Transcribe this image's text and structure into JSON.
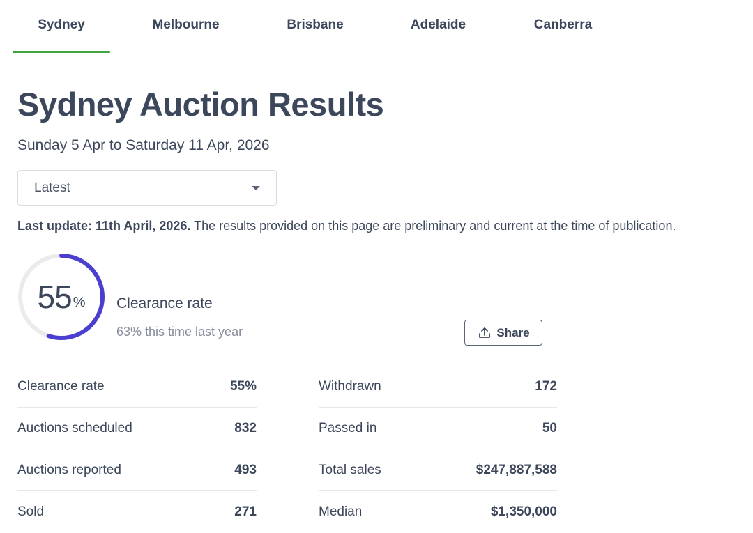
{
  "tabs": [
    {
      "label": "Sydney",
      "active": true
    },
    {
      "label": "Melbourne",
      "active": false
    },
    {
      "label": "Brisbane",
      "active": false
    },
    {
      "label": "Adelaide",
      "active": false
    },
    {
      "label": "Canberra",
      "active": false
    }
  ],
  "title": "Sydney Auction Results",
  "date_range": "Sunday 5 Apr to Saturday 11 Apr, 2026",
  "period_select": {
    "value": "Latest"
  },
  "update_note": {
    "bold": "Last update: 11th April, 2026.",
    "text": " The results provided on this page are preliminary and current at the time of publication."
  },
  "clearance": {
    "value": "55",
    "unit": "%",
    "fraction": 0.55,
    "label": "Clearance rate",
    "last_year": "63% this time last year"
  },
  "share_button": {
    "label": "Share",
    "icon": "upload-icon"
  },
  "stats_left": [
    {
      "label": "Clearance rate",
      "value": "55%"
    },
    {
      "label": "Auctions scheduled",
      "value": "832"
    },
    {
      "label": "Auctions reported",
      "value": "493"
    },
    {
      "label": "Sold",
      "value": "271"
    }
  ],
  "stats_right": [
    {
      "label": "Withdrawn",
      "value": "172"
    },
    {
      "label": "Passed in",
      "value": "50"
    },
    {
      "label": "Total sales",
      "value": "$247,887,588"
    },
    {
      "label": "Median",
      "value": "$1,350,000"
    }
  ],
  "colors": {
    "text": "#3c475b",
    "accent_tab": "#3fa33f",
    "ring_progress": "#4b3fd0",
    "ring_track": "#ebebeb",
    "muted": "#868e9b"
  }
}
